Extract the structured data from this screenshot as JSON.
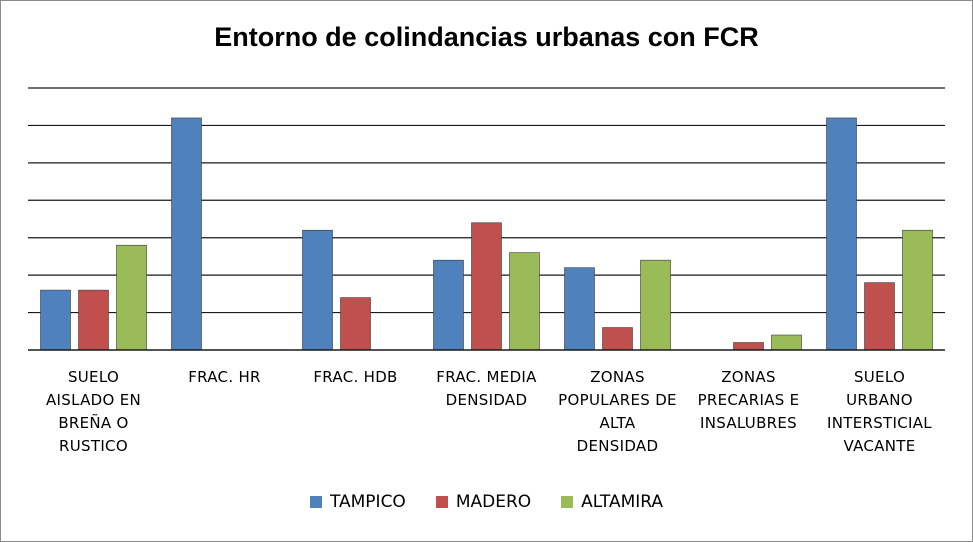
{
  "chart_data": {
    "type": "bar",
    "title": "Entorno de colindancias urbanas con FCR",
    "categories": [
      "SUELO AISLADO EN BREÑA O RUSTICO",
      "FRAC. HR",
      "FRAC. HDB",
      "FRAC. MEDIA DENSIDAD",
      "ZONAS POPULARES DE ALTA DENSIDAD",
      "ZONAS PRECARIAS E INSALUBRES",
      "SUELO URBANO INTERSTICIAL VACANTE"
    ],
    "category_lines": [
      [
        "SUELO",
        "AISLADO EN",
        "BREÑA O",
        "RUSTICO"
      ],
      [
        "FRAC. HR"
      ],
      [
        "FRAC. HDB"
      ],
      [
        "FRAC. MEDIA",
        "DENSIDAD"
      ],
      [
        "ZONAS",
        "POPULARES DE",
        "ALTA",
        "DENSIDAD"
      ],
      [
        "ZONAS",
        "PRECARIAS E",
        "INSALUBRES"
      ],
      [
        "SUELO",
        "URBANO",
        "INTERSTICIAL",
        "VACANTE"
      ]
    ],
    "series": [
      {
        "name": "TAMPICO",
        "color": "#4f81bd",
        "values": [
          1.6,
          6.2,
          3.2,
          2.4,
          2.2,
          0,
          6.2
        ]
      },
      {
        "name": "MADERO",
        "color": "#c0504d",
        "values": [
          1.6,
          0,
          1.4,
          3.4,
          0.6,
          0.2,
          1.8
        ]
      },
      {
        "name": "ALTAMIRA",
        "color": "#9bbb59",
        "values": [
          2.8,
          0,
          0,
          2.6,
          2.4,
          0.4,
          3.2
        ]
      }
    ],
    "ylim": [
      0,
      7
    ],
    "grid": true,
    "y_tick_labels_visible": false,
    "legend_position": "bottom"
  }
}
